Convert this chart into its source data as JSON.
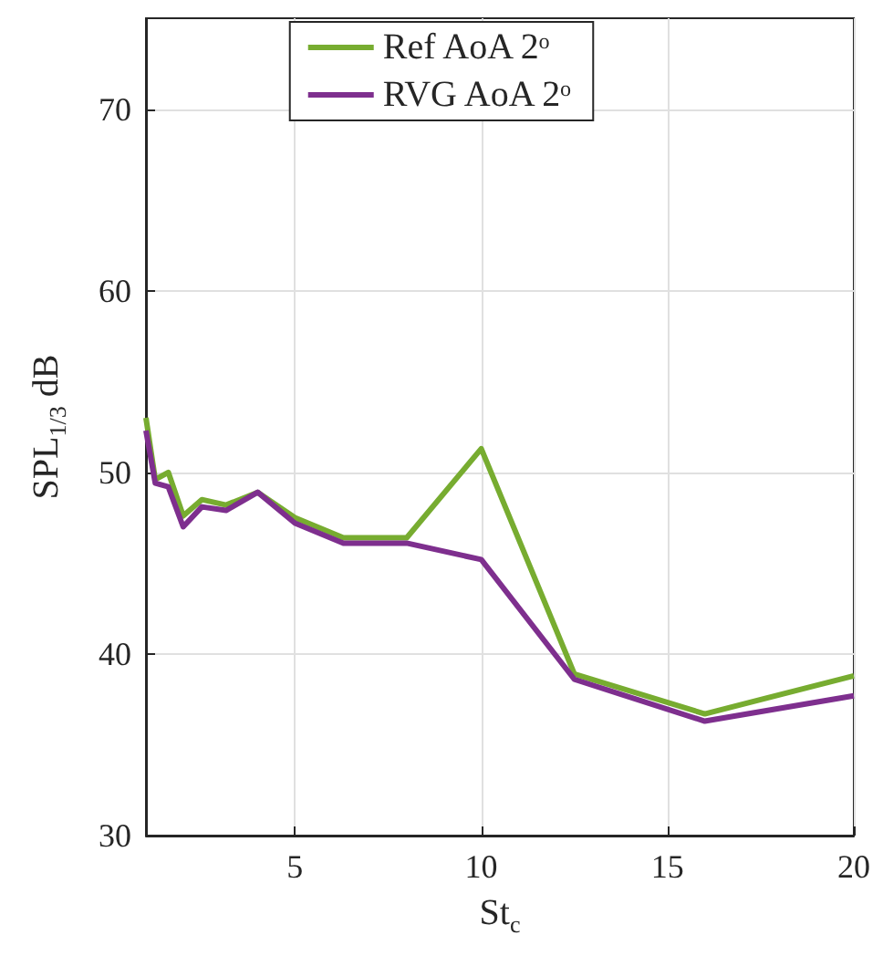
{
  "chart_data": {
    "type": "line",
    "xlabel": "St$_{c}$",
    "ylabel": "SPL$_{1/3}$ dB",
    "x": [
      1,
      1.25,
      1.6,
      2,
      2.5,
      3.15,
      4,
      5,
      6.3,
      8,
      10,
      12.5,
      16,
      20
    ],
    "series": [
      {
        "name": "Ref AoA 2ᵒ",
        "color": "#77ac30",
        "values": [
          53,
          49.6,
          50,
          47.6,
          48.5,
          48.2,
          48.9,
          47.5,
          46.4,
          46.4,
          51.3,
          38.9,
          36.7,
          38.8
        ]
      },
      {
        "name": "RVG AoA 2ᵒ",
        "color": "#7e2f8e",
        "values": [
          52.3,
          49.4,
          49.2,
          47,
          48.1,
          47.9,
          48.9,
          47.2,
          46.1,
          46.1,
          45.2,
          38.6,
          36.3,
          37.7
        ]
      }
    ],
    "xlim": [
      1,
      20
    ],
    "xticks": [
      5,
      10,
      15,
      20
    ],
    "ylim": [
      30,
      75
    ],
    "yticks": [
      30,
      40,
      50,
      60,
      70
    ],
    "grid": true,
    "legend": "top",
    "marker": "none",
    "line_style": "solid"
  }
}
